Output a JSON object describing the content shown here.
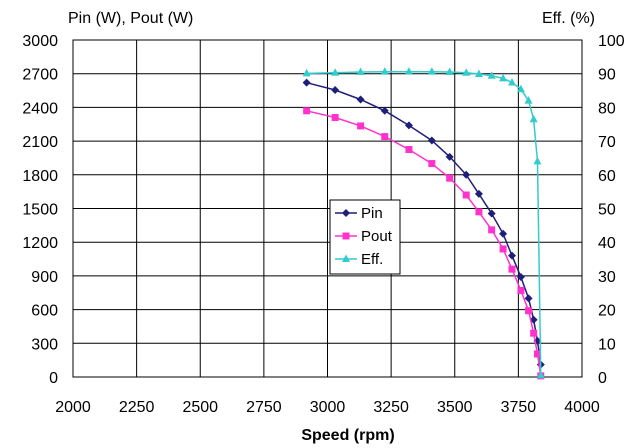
{
  "chart_data": {
    "type": "line",
    "xlabel": "Speed (rpm)",
    "ylabel_left": "Pin (W), Pout (W)",
    "ylabel_right": "Eff. (%)",
    "xlim": [
      2000,
      4000
    ],
    "ylim_left": [
      0,
      3000
    ],
    "ylim_right": [
      0,
      100
    ],
    "x_ticks": [
      2000,
      2250,
      2500,
      2750,
      3000,
      3250,
      3500,
      3750,
      4000
    ],
    "y_left_ticks": [
      0,
      300,
      600,
      900,
      1200,
      1500,
      1800,
      2100,
      2400,
      2700,
      3000
    ],
    "y_right_ticks": [
      0,
      10,
      20,
      30,
      40,
      50,
      60,
      70,
      80,
      90,
      100
    ],
    "grid": true,
    "legend_position": "center",
    "series": [
      {
        "name": "Pin",
        "axis": "left",
        "color": "#1f1f7a",
        "marker": "diamond",
        "points": [
          [
            2918,
            2620
          ],
          [
            3030,
            2555
          ],
          [
            3130,
            2470
          ],
          [
            3225,
            2370
          ],
          [
            3320,
            2240
          ],
          [
            3410,
            2105
          ],
          [
            3480,
            1960
          ],
          [
            3545,
            1800
          ],
          [
            3595,
            1630
          ],
          [
            3645,
            1455
          ],
          [
            3690,
            1275
          ],
          [
            3725,
            1080
          ],
          [
            3760,
            890
          ],
          [
            3790,
            700
          ],
          [
            3810,
            510
          ],
          [
            3825,
            320
          ],
          [
            3838,
            110
          ]
        ]
      },
      {
        "name": "Pout",
        "axis": "left",
        "color": "#ff33cc",
        "marker": "square",
        "points": [
          [
            2918,
            2370
          ],
          [
            3030,
            2310
          ],
          [
            3130,
            2235
          ],
          [
            3225,
            2140
          ],
          [
            3320,
            2025
          ],
          [
            3410,
            1900
          ],
          [
            3480,
            1770
          ],
          [
            3545,
            1620
          ],
          [
            3595,
            1470
          ],
          [
            3645,
            1310
          ],
          [
            3690,
            1140
          ],
          [
            3725,
            960
          ],
          [
            3760,
            770
          ],
          [
            3790,
            590
          ],
          [
            3810,
            390
          ],
          [
            3825,
            205
          ],
          [
            3838,
            10
          ]
        ]
      },
      {
        "name": "Eff.",
        "axis": "right",
        "color": "#33cccc",
        "marker": "triangle",
        "points": [
          [
            2918,
            90.1
          ],
          [
            3030,
            90.3
          ],
          [
            3130,
            90.5
          ],
          [
            3225,
            90.6
          ],
          [
            3320,
            90.6
          ],
          [
            3410,
            90.6
          ],
          [
            3480,
            90.5
          ],
          [
            3545,
            90.3
          ],
          [
            3595,
            89.9
          ],
          [
            3645,
            89.4
          ],
          [
            3690,
            88.6
          ],
          [
            3725,
            87.4
          ],
          [
            3760,
            85.4
          ],
          [
            3790,
            82.0
          ],
          [
            3810,
            76.5
          ],
          [
            3825,
            64.0
          ],
          [
            3838,
            0.5
          ]
        ]
      }
    ]
  }
}
